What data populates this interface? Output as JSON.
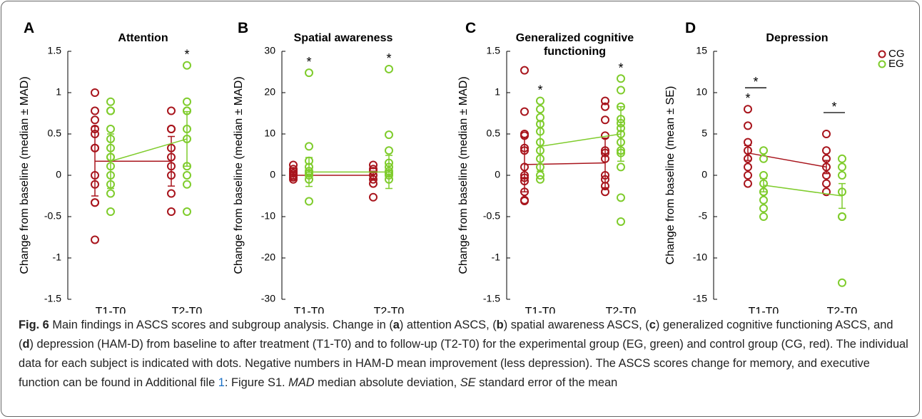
{
  "chart_data": [
    {
      "type": "dot",
      "panel": "A",
      "title": "Attention",
      "ylabel": "Change from baseline (median ± MAD)",
      "categories": [
        "T1-T0",
        "T2-T0"
      ],
      "ylim": [
        -1.5,
        1.5
      ],
      "yticks": [
        -1.5,
        -1,
        -0.5,
        0,
        0.5,
        1,
        1.5
      ],
      "series": [
        {
          "name": "CG",
          "color": "#a8141c",
          "values": [
            0.17,
            0.17
          ],
          "errors": [
            0.42,
            0.3
          ],
          "points": [
            [
              1,
              0.78,
              0.67,
              0.56,
              0.5,
              0.33,
              0.33,
              0,
              -0.11,
              -0.33,
              -0.33,
              -0.78
            ],
            [
              0.78,
              0.56,
              0.56,
              0.33,
              0.22,
              0.11,
              0,
              -0.22,
              -0.44
            ]
          ]
        },
        {
          "name": "EG",
          "color": "#7fcc2c",
          "values": [
            0.17,
            0.44
          ],
          "errors": [
            0.33,
            0.33
          ],
          "points": [
            [
              0.89,
              0.78,
              0.78,
              0.56,
              0.44,
              0.33,
              0.22,
              0.22,
              0.11,
              0,
              -0.11,
              -0.22,
              -0.44
            ],
            [
              1.33,
              0.89,
              0.78,
              0.78,
              0.56,
              0.44,
              0.11,
              0,
              -0.11,
              -0.44
            ]
          ]
        }
      ],
      "marks": [
        {
          "text": "*",
          "over": [
            "EG"
          ],
          "at": "T2-T0"
        }
      ]
    },
    {
      "type": "dot",
      "panel": "B",
      "title": "Spatial awareness",
      "ylabel": "Change from baseline (median ± MAD)",
      "categories": [
        "T1-T0",
        "T2-T0"
      ],
      "ylim": [
        -30,
        30
      ],
      "yticks": [
        -30,
        -20,
        -10,
        0,
        10,
        20,
        30
      ],
      "series": [
        {
          "name": "CG",
          "color": "#a8141c",
          "values": [
            0,
            0
          ],
          "errors": [
            1,
            1
          ],
          "points": [
            [
              2.5,
              1.5,
              1,
              0.5,
              0,
              -0.5,
              -1
            ],
            [
              2.5,
              1.5,
              1,
              0,
              -1,
              -2,
              -5.3
            ]
          ]
        },
        {
          "name": "EG",
          "color": "#7fcc2c",
          "values": [
            0.8,
            0.8
          ],
          "errors": [
            3.5,
            4
          ],
          "points": [
            [
              24.8,
              7,
              3.5,
              2,
              1,
              0.5,
              0,
              -1,
              -6.3
            ],
            [
              25.7,
              9.8,
              6,
              3,
              2,
              1,
              0.5,
              0,
              -1
            ]
          ]
        }
      ],
      "marks": [
        {
          "text": "*",
          "over": [
            "EG"
          ],
          "at": "T1-T0"
        },
        {
          "text": "*",
          "over": [
            "EG"
          ],
          "at": "T2-T0"
        }
      ]
    },
    {
      "type": "dot",
      "panel": "C",
      "title": "Generalized cognitive functioning",
      "ylabel": "Change from baseline (median ± MAD)",
      "categories": [
        "T1-T0",
        "T2-T0"
      ],
      "ylim": [
        -1.5,
        1.5
      ],
      "yticks": [
        -1.5,
        -1,
        -0.5,
        0,
        0.5,
        1,
        1.5
      ],
      "series": [
        {
          "name": "CG",
          "color": "#a8141c",
          "values": [
            0.13,
            0.15
          ],
          "errors": [
            0.33,
            0.3
          ],
          "points": [
            [
              1.27,
              0.77,
              0.5,
              0.48,
              0.33,
              0.3,
              0.1,
              0,
              -0.03,
              -0.07,
              -0.2,
              -0.3,
              -0.31
            ],
            [
              0.9,
              0.83,
              0.67,
              0.48,
              0.3,
              0.27,
              0.2,
              0,
              -0.05,
              -0.13,
              -0.2
            ]
          ]
        },
        {
          "name": "EG",
          "color": "#7fcc2c",
          "values": [
            0.35,
            0.5
          ],
          "errors": [
            0.3,
            0.33
          ],
          "points": [
            [
              0.9,
              0.8,
              0.7,
              0.62,
              0.53,
              0.4,
              0.3,
              0.2,
              0.1,
              0,
              -0.05
            ],
            [
              1.17,
              1.03,
              0.83,
              0.68,
              0.63,
              0.57,
              0.5,
              0.4,
              0.3,
              0.27,
              0.1,
              -0.27,
              -0.56
            ]
          ]
        }
      ],
      "marks": [
        {
          "text": "*",
          "over": [
            "EG"
          ],
          "at": "T1-T0"
        },
        {
          "text": "*",
          "over": [
            "EG"
          ],
          "at": "T2-T0"
        }
      ]
    },
    {
      "type": "dot",
      "panel": "D",
      "title": "Depression",
      "ylabel": "Change from baseline (mean ± SE)",
      "categories": [
        "T1-T0",
        "T2-T0"
      ],
      "ylim": [
        -15,
        15
      ],
      "yticks": [
        -15,
        -10,
        -5,
        0,
        5,
        10,
        15
      ],
      "legend": "upper right",
      "series": [
        {
          "name": "CG",
          "color": "#a8141c",
          "values": [
            2.7,
            1
          ],
          "errors": [
            0.9,
            0.8
          ],
          "points": [
            [
              8,
              6,
              4,
              3,
              2,
              1,
              0,
              -1
            ],
            [
              5,
              3,
              2,
              1,
              0,
              -1,
              -2
            ]
          ]
        },
        {
          "name": "EG",
          "color": "#7fcc2c",
          "values": [
            -1.2,
            -2.5
          ],
          "errors": [
            0.8,
            1.5
          ],
          "points": [
            [
              3,
              2,
              0,
              -1,
              -2,
              -2,
              -3,
              -4,
              -5
            ],
            [
              2,
              1,
              0,
              -2,
              -5,
              -5,
              -13
            ]
          ]
        }
      ],
      "marks": [
        {
          "text": "*",
          "over": [
            "CG"
          ],
          "at": "T1-T0"
        },
        {
          "text": "*",
          "over": [
            "CG",
            "EG"
          ],
          "at": "T1-T0"
        },
        {
          "text": "*",
          "over": [
            "CG",
            "EG"
          ],
          "at": "T2-T0"
        }
      ]
    }
  ],
  "caption": [
    "Fig. 6",
    " Main findings in ASCS scores and subgroup analysis. Change in (",
    "a",
    ") attention ASCS, (",
    "b",
    ") spatial awareness ASCS, (",
    "c",
    ") generalized cognitive functioning ASCS, and (",
    "d",
    ") depression (HAM-D) from baseline to after treatment (T1-T0) and to follow-up (T2-T0) for the experimental group (EG, green) and control group (CG, red). The individual data for each subject is indicated with dots. Negative numbers in HAM-D mean improvement (less depression). The ASCS scores change for memory, and executive function can be found in Additional file ",
    "1",
    ": Figure S1. ",
    "MAD",
    " median absolute deviation, ",
    "SE",
    " standard error of the mean"
  ]
}
